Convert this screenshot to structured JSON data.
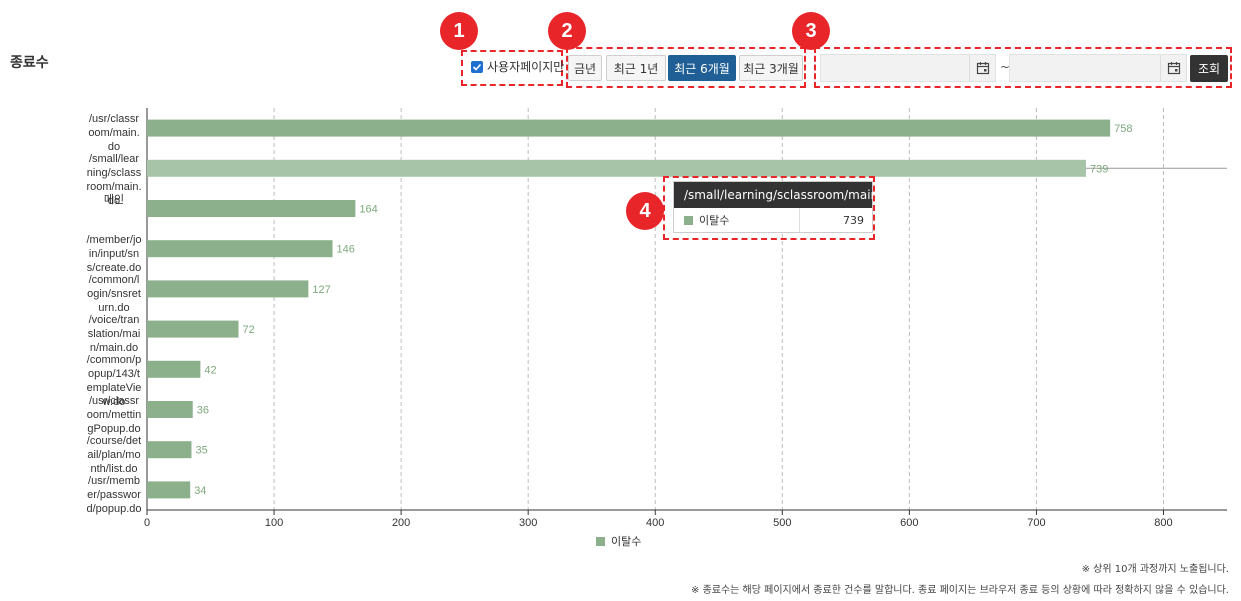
{
  "header": {
    "title": "종료수"
  },
  "filters": {
    "user_page_only": {
      "label": "사용자페이지만",
      "checked": true
    },
    "periods": [
      {
        "label": "금년",
        "active": false
      },
      {
        "label": "최근 1년",
        "active": false
      },
      {
        "label": "최근 6개월",
        "active": true
      },
      {
        "label": "최근 3개월",
        "active": false
      }
    ],
    "date_range": {
      "start": "",
      "end": "",
      "separator": "~"
    },
    "search_label": "조회"
  },
  "markers": [
    "1",
    "2",
    "3",
    "4"
  ],
  "colors": {
    "bar": "#8bb08b",
    "bar_highlight": "#a8c4a8",
    "marker": "#e8262a",
    "active_button": "#1f5f96"
  },
  "chart_data": {
    "type": "bar",
    "orientation": "horizontal",
    "categories": [
      "/usr/classroom/main.do",
      "/small/learning/sclassroom/main.do",
      "메인",
      "/member/join/input/sns/create.do",
      "/common/login/snsreturn.do",
      "/voice/translation/main/main.do",
      "/common/popup/143/templateView.do",
      "/usr/classroom/mettingPopup.do",
      "/course/detail/plan/month/list.do",
      "/usr/member/password/popup.do"
    ],
    "series": [
      {
        "name": "이탈수",
        "values": [
          758,
          739,
          164,
          146,
          127,
          72,
          42,
          36,
          35,
          34
        ]
      }
    ],
    "xlim": [
      0,
      850
    ],
    "xticks": [
      0,
      100,
      200,
      300,
      400,
      500,
      600,
      700,
      800
    ],
    "grid": true,
    "legend": "bottom-center",
    "highlighted_index": 1
  },
  "tooltip": {
    "title": "/small/learning/sclassroom/main.do",
    "series_name": "이탈수",
    "value": "739"
  },
  "notes": [
    "※ 상위 10개 과정까지 노출됩니다.",
    "※ 종료수는 해당 페이지에서 종료한 건수를 말합니다. 종료 페이지는 브라우저 종료 등의 상황에 따라 정확하지 않을 수 있습니다."
  ]
}
